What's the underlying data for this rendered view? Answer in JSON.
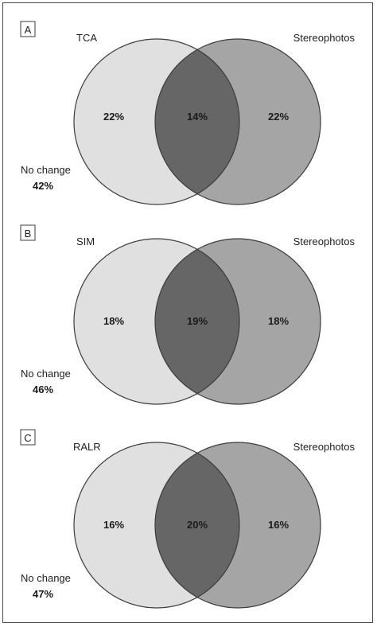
{
  "colors": {
    "left_circle": "#e0e0e0",
    "right_circle": "#a5a5a6",
    "overlap": "#666667",
    "stroke": "#3c3c3c"
  },
  "panels": [
    {
      "letter": "A",
      "left_label": "TCA",
      "right_label": "Stereophotos",
      "left_value": "22%",
      "overlap_value": "14%",
      "right_value": "22%",
      "no_change_label": "No change",
      "no_change_value": "42%"
    },
    {
      "letter": "B",
      "left_label": "SIM",
      "right_label": "Stereophotos",
      "left_value": "18%",
      "overlap_value": "19%",
      "right_value": "18%",
      "no_change_label": "No change",
      "no_change_value": "46%"
    },
    {
      "letter": "C",
      "left_label": "RALR",
      "right_label": "Stereophotos",
      "left_value": "16%",
      "overlap_value": "20%",
      "right_value": "16%",
      "no_change_label": "No change",
      "no_change_value": "47%"
    }
  ]
}
